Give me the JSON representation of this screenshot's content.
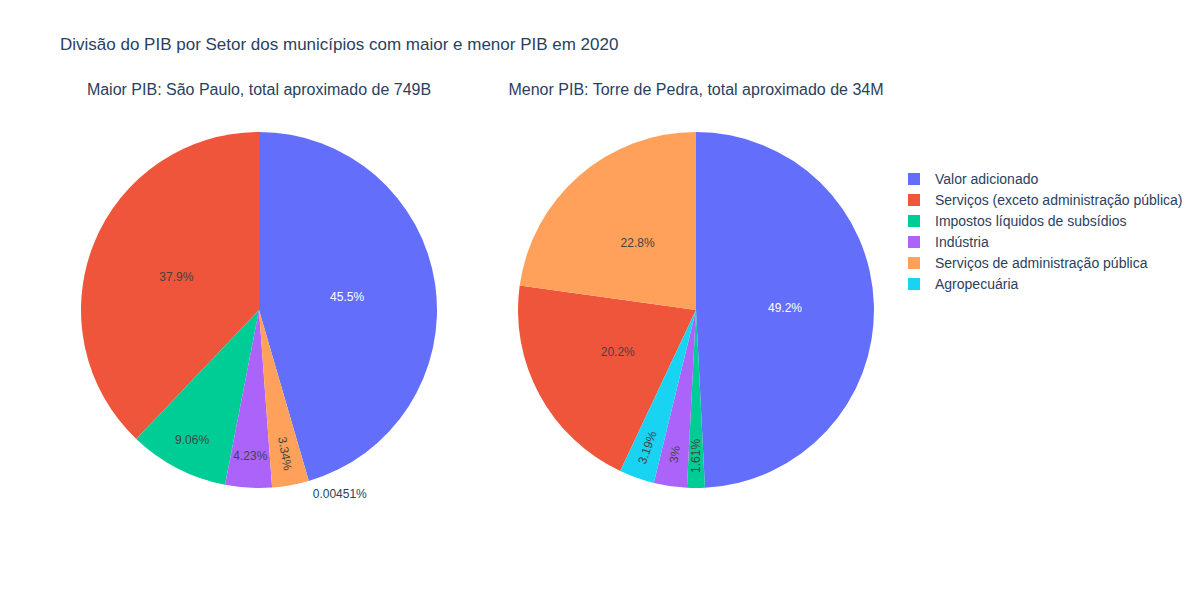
{
  "chart_data": {
    "type": "pie",
    "title": "Divisão do PIB por Setor dos municípios com maior e menor PIB em 2020",
    "categories": [
      "Valor adicionado",
      "Serviços (exceto administração pública)",
      "Impostos líquidos de subsídios",
      "Indústria",
      "Serviços de administração pública",
      "Agropecuária"
    ],
    "colors": [
      "#636efa",
      "#EF553B",
      "#00cc96",
      "#ab63fa",
      "#FFA15A",
      "#19d3f3"
    ],
    "series": [
      {
        "name": "Maior PIB: São Paulo, total aproximado de 749B",
        "values": [
          45.5,
          37.9,
          9.06,
          4.23,
          3.34,
          0.00451
        ],
        "value_labels": [
          "45.5%",
          "37.9%",
          "9.06%",
          "4.23%",
          "3.34%",
          "0.00451%"
        ]
      },
      {
        "name": "Menor PIB: Torre de Pedra, total aproximado de 34M",
        "values": [
          49.2,
          20.2,
          1.61,
          3,
          22.8,
          3.19
        ],
        "value_labels": [
          "49.2%",
          "20.2%",
          "1.61%",
          "3%",
          "22.8%",
          "3.19%"
        ]
      }
    ],
    "data_labels": true,
    "legend": "right"
  }
}
